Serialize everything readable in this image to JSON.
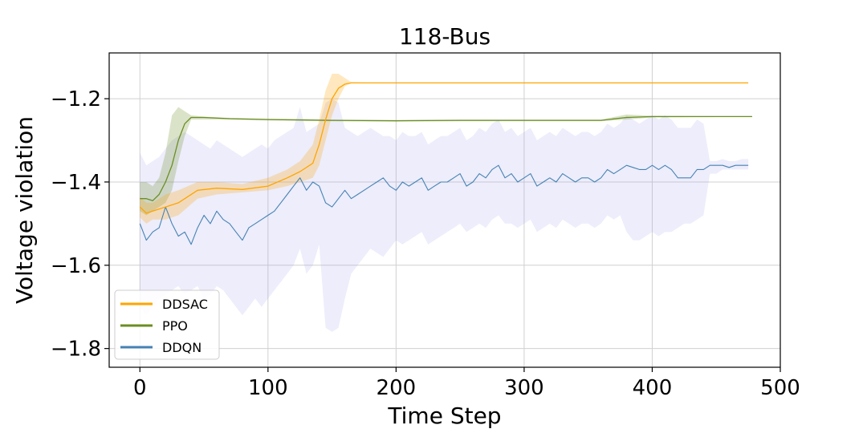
{
  "chart_data": {
    "type": "line",
    "title": "118-Bus",
    "xlabel": "Time Step",
    "ylabel": "Voltage violation",
    "xlim": [
      -24,
      500
    ],
    "ylim": [
      -1.845,
      -1.09
    ],
    "xticks": [
      0,
      100,
      200,
      300,
      400,
      500
    ],
    "xtick_labels": [
      "0",
      "100",
      "200",
      "300",
      "400",
      "500"
    ],
    "yticks": [
      -1.8,
      -1.6,
      -1.4,
      -1.2
    ],
    "ytick_labels": [
      "−1.8",
      "−1.6",
      "−1.4",
      "−1.2"
    ],
    "grid": true,
    "legend_position": "lower-left",
    "series": [
      {
        "name": "DDSAC",
        "color": "#FFA500",
        "x": [
          0,
          5,
          10,
          20,
          30,
          45,
          60,
          80,
          100,
          115,
          125,
          135,
          140,
          145,
          150,
          155,
          160,
          165,
          175,
          200,
          300,
          400,
          475
        ],
        "mean": [
          -1.46,
          -1.475,
          -1.47,
          -1.46,
          -1.45,
          -1.42,
          -1.415,
          -1.418,
          -1.41,
          -1.39,
          -1.375,
          -1.355,
          -1.31,
          -1.25,
          -1.2,
          -1.175,
          -1.165,
          -1.162,
          -1.162,
          -1.162,
          -1.162,
          -1.162,
          -1.162
        ],
        "lower": [
          -1.485,
          -1.5,
          -1.49,
          -1.49,
          -1.48,
          -1.44,
          -1.43,
          -1.425,
          -1.42,
          -1.41,
          -1.4,
          -1.39,
          -1.36,
          -1.3,
          -1.24,
          -1.2,
          -1.17,
          -1.163,
          -1.162,
          -1.162,
          -1.162,
          -1.162,
          -1.162
        ],
        "upper": [
          -1.435,
          -1.45,
          -1.45,
          -1.43,
          -1.42,
          -1.4,
          -1.4,
          -1.405,
          -1.39,
          -1.37,
          -1.35,
          -1.31,
          -1.25,
          -1.18,
          -1.14,
          -1.14,
          -1.15,
          -1.16,
          -1.161,
          -1.161,
          -1.161,
          -1.161,
          -1.161
        ]
      },
      {
        "name": "PPO",
        "color": "#6B8E23",
        "x": [
          0,
          5,
          10,
          15,
          20,
          25,
          30,
          35,
          40,
          50,
          70,
          100,
          150,
          200,
          250,
          300,
          360,
          380,
          400,
          450,
          478
        ],
        "mean": [
          -1.44,
          -1.44,
          -1.445,
          -1.43,
          -1.4,
          -1.36,
          -1.3,
          -1.26,
          -1.245,
          -1.245,
          -1.248,
          -1.25,
          -1.252,
          -1.253,
          -1.252,
          -1.252,
          -1.252,
          -1.245,
          -1.243,
          -1.243,
          -1.243
        ],
        "lower": [
          -1.47,
          -1.48,
          -1.47,
          -1.46,
          -1.45,
          -1.42,
          -1.35,
          -1.29,
          -1.25,
          -1.25,
          -1.25,
          -1.252,
          -1.254,
          -1.255,
          -1.254,
          -1.254,
          -1.254,
          -1.25,
          -1.245,
          -1.244,
          -1.244
        ],
        "upper": [
          -1.4,
          -1.4,
          -1.41,
          -1.39,
          -1.33,
          -1.24,
          -1.22,
          -1.23,
          -1.24,
          -1.243,
          -1.246,
          -1.248,
          -1.25,
          -1.251,
          -1.25,
          -1.25,
          -1.25,
          -1.238,
          -1.241,
          -1.242,
          -1.242
        ]
      },
      {
        "name": "DDQN",
        "color": "#4682B4",
        "x": [
          0,
          5,
          10,
          15,
          20,
          25,
          30,
          35,
          40,
          45,
          50,
          55,
          60,
          65,
          70,
          75,
          80,
          85,
          90,
          95,
          100,
          105,
          110,
          115,
          120,
          125,
          130,
          135,
          140,
          145,
          150,
          155,
          160,
          165,
          170,
          175,
          180,
          185,
          190,
          195,
          200,
          205,
          210,
          215,
          220,
          225,
          230,
          235,
          240,
          245,
          250,
          255,
          260,
          265,
          270,
          275,
          280,
          285,
          290,
          295,
          300,
          305,
          310,
          315,
          320,
          325,
          330,
          335,
          340,
          345,
          350,
          355,
          360,
          365,
          370,
          375,
          380,
          385,
          390,
          395,
          400,
          405,
          410,
          415,
          420,
          425,
          430,
          435,
          440,
          445,
          450,
          455,
          460,
          465,
          470,
          475
        ],
        "mean": [
          -1.5,
          -1.54,
          -1.52,
          -1.51,
          -1.46,
          -1.5,
          -1.53,
          -1.52,
          -1.55,
          -1.51,
          -1.48,
          -1.5,
          -1.47,
          -1.49,
          -1.5,
          -1.52,
          -1.54,
          -1.51,
          -1.5,
          -1.49,
          -1.48,
          -1.47,
          -1.45,
          -1.43,
          -1.41,
          -1.39,
          -1.42,
          -1.4,
          -1.41,
          -1.45,
          -1.46,
          -1.44,
          -1.42,
          -1.44,
          -1.43,
          -1.42,
          -1.41,
          -1.4,
          -1.39,
          -1.41,
          -1.42,
          -1.4,
          -1.41,
          -1.4,
          -1.39,
          -1.42,
          -1.41,
          -1.4,
          -1.4,
          -1.39,
          -1.38,
          -1.41,
          -1.4,
          -1.38,
          -1.39,
          -1.37,
          -1.36,
          -1.39,
          -1.38,
          -1.4,
          -1.39,
          -1.38,
          -1.41,
          -1.4,
          -1.39,
          -1.4,
          -1.38,
          -1.39,
          -1.4,
          -1.39,
          -1.39,
          -1.4,
          -1.39,
          -1.37,
          -1.38,
          -1.37,
          -1.36,
          -1.365,
          -1.37,
          -1.37,
          -1.36,
          -1.37,
          -1.36,
          -1.37,
          -1.39,
          -1.39,
          -1.39,
          -1.37,
          -1.37,
          -1.36,
          -1.36,
          -1.36,
          -1.365,
          -1.36,
          -1.36,
          -1.36
        ],
        "lower": [
          -1.7,
          -1.72,
          -1.7,
          -1.68,
          -1.67,
          -1.66,
          -1.65,
          -1.67,
          -1.66,
          -1.65,
          -1.68,
          -1.67,
          -1.65,
          -1.66,
          -1.68,
          -1.7,
          -1.72,
          -1.7,
          -1.68,
          -1.7,
          -1.68,
          -1.66,
          -1.64,
          -1.62,
          -1.6,
          -1.56,
          -1.62,
          -1.6,
          -1.55,
          -1.75,
          -1.76,
          -1.75,
          -1.68,
          -1.62,
          -1.6,
          -1.58,
          -1.56,
          -1.57,
          -1.58,
          -1.56,
          -1.54,
          -1.55,
          -1.54,
          -1.53,
          -1.52,
          -1.55,
          -1.54,
          -1.53,
          -1.52,
          -1.51,
          -1.5,
          -1.52,
          -1.51,
          -1.5,
          -1.51,
          -1.49,
          -1.48,
          -1.5,
          -1.5,
          -1.51,
          -1.5,
          -1.49,
          -1.52,
          -1.51,
          -1.5,
          -1.51,
          -1.49,
          -1.5,
          -1.51,
          -1.5,
          -1.5,
          -1.51,
          -1.5,
          -1.48,
          -1.49,
          -1.48,
          -1.52,
          -1.54,
          -1.54,
          -1.53,
          -1.52,
          -1.53,
          -1.52,
          -1.52,
          -1.51,
          -1.5,
          -1.5,
          -1.49,
          -1.48,
          -1.38,
          -1.38,
          -1.37,
          -1.37,
          -1.37,
          -1.37,
          -1.37
        ],
        "upper": [
          -1.33,
          -1.36,
          -1.35,
          -1.34,
          -1.32,
          -1.3,
          -1.29,
          -1.28,
          -1.29,
          -1.3,
          -1.31,
          -1.32,
          -1.3,
          -1.31,
          -1.32,
          -1.33,
          -1.34,
          -1.33,
          -1.32,
          -1.31,
          -1.32,
          -1.3,
          -1.29,
          -1.28,
          -1.27,
          -1.22,
          -1.28,
          -1.27,
          -1.26,
          -1.21,
          -1.2,
          -1.21,
          -1.27,
          -1.28,
          -1.29,
          -1.28,
          -1.27,
          -1.28,
          -1.29,
          -1.29,
          -1.3,
          -1.28,
          -1.29,
          -1.29,
          -1.28,
          -1.31,
          -1.3,
          -1.29,
          -1.29,
          -1.28,
          -1.27,
          -1.3,
          -1.29,
          -1.27,
          -1.28,
          -1.26,
          -1.25,
          -1.28,
          -1.27,
          -1.29,
          -1.28,
          -1.27,
          -1.3,
          -1.29,
          -1.28,
          -1.29,
          -1.27,
          -1.28,
          -1.29,
          -1.28,
          -1.28,
          -1.29,
          -1.28,
          -1.26,
          -1.27,
          -1.26,
          -1.24,
          -1.25,
          -1.26,
          -1.25,
          -1.24,
          -1.25,
          -1.24,
          -1.25,
          -1.27,
          -1.27,
          -1.27,
          -1.25,
          -1.26,
          -1.35,
          -1.35,
          -1.345,
          -1.35,
          -1.35,
          -1.345,
          -1.345
        ]
      }
    ],
    "band_color": "#9c9ce8"
  }
}
